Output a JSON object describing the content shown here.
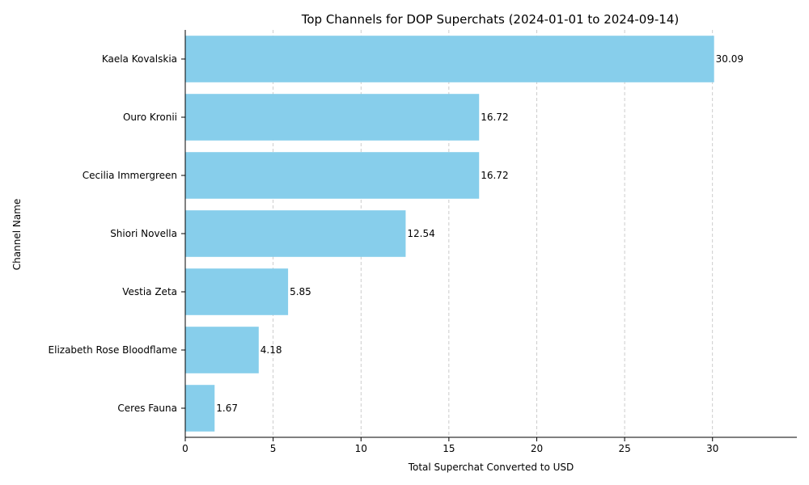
{
  "chart_data": {
    "type": "bar",
    "orientation": "horizontal",
    "title": "Top Channels for DOP Superchats (2024-01-01 to 2024-09-14)",
    "xlabel": "Total Superchat Converted to USD",
    "ylabel": "Channel Name",
    "categories": [
      "Kaela Kovalskia",
      "Ouro Kronii",
      "Cecilia Immergreen",
      "Shiori Novella",
      "Vestia Zeta",
      "Elizabeth Rose Bloodflame",
      "Ceres Fauna"
    ],
    "values": [
      30.09,
      16.72,
      16.72,
      12.54,
      5.85,
      4.18,
      1.67
    ],
    "value_labels": [
      "30.09",
      "16.72",
      "16.72",
      "12.54",
      "5.85",
      "4.18",
      "1.67"
    ],
    "xlim": [
      0,
      34.8
    ],
    "xticks": [
      0,
      5,
      10,
      15,
      20,
      25,
      30
    ],
    "xtick_labels": [
      "0",
      "5",
      "10",
      "15",
      "20",
      "25",
      "30"
    ],
    "grid": "x-dashed",
    "bar_color": "#87CEEB"
  }
}
